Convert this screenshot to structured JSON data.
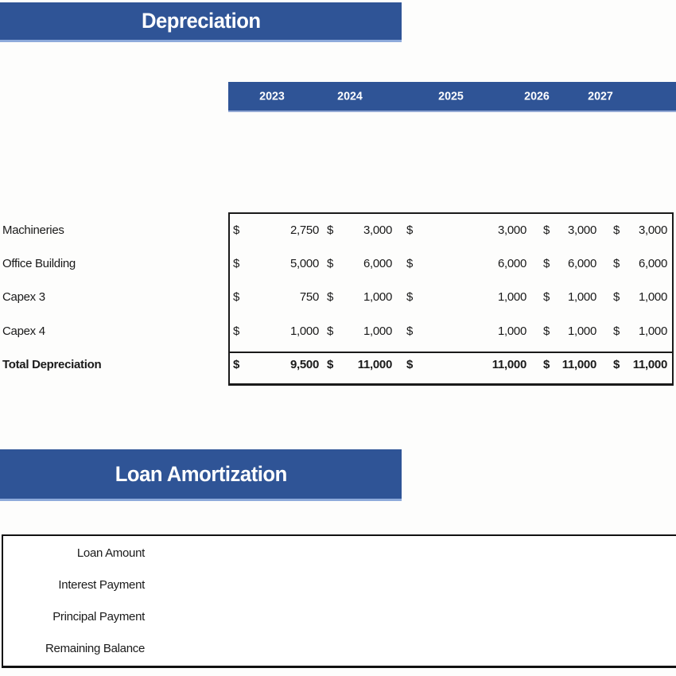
{
  "colors": {
    "banner_blue": "#2F5496",
    "banner_edge_light": "#8EAADB",
    "table_border": "#1A1A1A",
    "background": "#FDFDFC",
    "header_text": "#FFFFFF"
  },
  "depreciation": {
    "title": "Depreciation",
    "currency": "$",
    "years": [
      "2023",
      "2024",
      "2025",
      "2026",
      "2027"
    ],
    "rows": [
      {
        "label": "Machineries",
        "values": [
          "2,750",
          "3,000",
          "3,000",
          "3,000",
          "3,000"
        ]
      },
      {
        "label": "Office Building",
        "values": [
          "5,000",
          "6,000",
          "6,000",
          "6,000",
          "6,000"
        ]
      },
      {
        "label": "Capex 3",
        "values": [
          "750",
          "1,000",
          "1,000",
          "1,000",
          "1,000"
        ]
      },
      {
        "label": "Capex 4",
        "values": [
          "1,000",
          "1,000",
          "1,000",
          "1,000",
          "1,000"
        ]
      }
    ],
    "total": {
      "label": "Total Depreciation",
      "values": [
        "9,500",
        "11,000",
        "11,000",
        "11,000",
        "11,000"
      ]
    }
  },
  "loan": {
    "title": "Loan Amortization",
    "row_labels": [
      "Loan Amount",
      "Interest Payment",
      "Principal Payment",
      "Remaining Balance"
    ]
  }
}
